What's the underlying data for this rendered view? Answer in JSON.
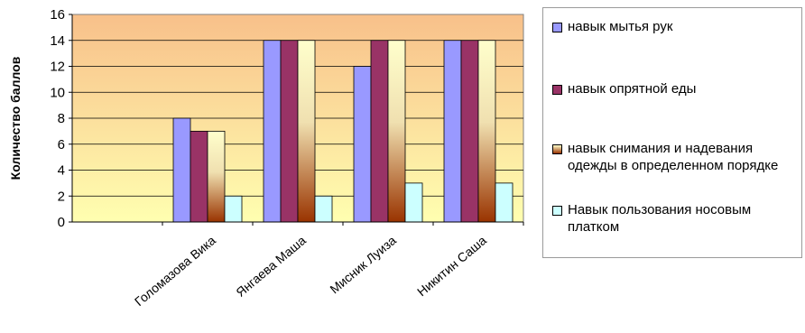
{
  "chart_data": {
    "type": "bar",
    "ylabel": "Количество баллов",
    "ylim": [
      0,
      16
    ],
    "yticks": [
      0,
      2,
      4,
      6,
      8,
      10,
      12,
      14,
      16
    ],
    "grid": true,
    "legend_position": "right",
    "categories": [
      "",
      "Голомазова Вика",
      "Янгаева Маша",
      "Мисник Луиза",
      "Никитин Саша"
    ],
    "series": [
      {
        "name": "навык мытья рук",
        "values": [
          null,
          8,
          14,
          12,
          14
        ],
        "color": "#9999ff"
      },
      {
        "name": "навык опрятной еды",
        "values": [
          null,
          7,
          14,
          14,
          14
        ],
        "color": "#993366"
      },
      {
        "name": "навык снимания и надевания одежды в определенном порядке",
        "values": [
          null,
          7,
          14,
          14,
          14
        ],
        "color": "#ffffcc",
        "gradient_to": "#993300"
      },
      {
        "name": "Навык пользования носовым платком",
        "values": [
          null,
          2,
          2,
          3,
          3
        ],
        "color": "#ccffff"
      }
    ],
    "plot_background": {
      "top": "#f8c08a",
      "bottom": "#ffffb0"
    }
  },
  "legend": {
    "items": [
      {
        "label": "навык мытья рук"
      },
      {
        "label": "навык опрятной еды"
      },
      {
        "label": "навык снимания и надевания одежды в определенном порядке"
      },
      {
        "label": "Навык пользования носовым платком"
      }
    ]
  }
}
